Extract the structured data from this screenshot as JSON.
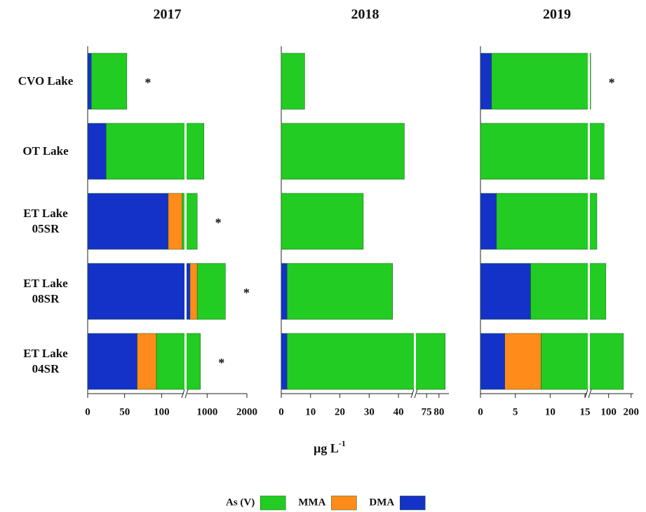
{
  "chart_data": {
    "type": "bar",
    "orientation": "horizontal",
    "stacked": true,
    "categories": [
      "CVO Lake",
      "OT Lake",
      "ET Lake\n05SR",
      "ET Lake\n08SR",
      "ET Lake\n04SR"
    ],
    "series": [
      {
        "name": "DMA",
        "color": "#1432c8"
      },
      {
        "name": "MMA",
        "color": "#ff8c1a"
      },
      {
        "name": "As (V)",
        "color": "#22cc22"
      }
    ],
    "xlabel": "μg L",
    "xlabel_sup": "-1",
    "panels": [
      {
        "title": "2017",
        "xsegments": [
          [
            0,
            130
          ],
          [
            500,
            2000
          ]
        ],
        "xticks": [
          0,
          50,
          100,
          1000,
          2000
        ],
        "series": [
          {
            "values": [
              5,
              25,
              109,
              570,
              67
            ]
          },
          {
            "values": [
              null,
              null,
              19,
              180,
              26
            ]
          },
          {
            "values": [
              48,
              895,
              622,
              710,
              737
            ]
          }
        ],
        "annotations": [
          {
            "category": 0,
            "text": "*"
          },
          {
            "category": 2,
            "text": "*"
          },
          {
            "category": 3,
            "text": "*"
          },
          {
            "category": 4,
            "text": "*"
          }
        ]
      },
      {
        "title": "2018",
        "xsegments": [
          [
            0,
            45
          ],
          [
            71,
            84
          ]
        ],
        "xticks": [
          0,
          10,
          20,
          30,
          40,
          75,
          80
        ],
        "series": [
          {
            "values": [
              null,
              null,
              null,
              2,
              2
            ]
          },
          {
            "values": [
              null,
              null,
              null,
              null,
              null
            ]
          },
          {
            "values": [
              8,
              42,
              28,
              36,
              80.5
            ]
          }
        ],
        "annotations": []
      },
      {
        "title": "2019",
        "xsegments": [
          [
            0,
            15.3
          ],
          [
            20,
            210
          ]
        ],
        "xticks": [
          0,
          5,
          10,
          15,
          100,
          200
        ],
        "series": [
          {
            "values": [
              1.6,
              null,
              2.3,
              7.2,
              3.5
            ]
          },
          {
            "values": [
              null,
              null,
              null,
              null,
              5.2
            ]
          },
          {
            "values": [
              18.9,
              80,
              45.7,
              80.8,
              157
            ]
          }
        ],
        "annotations": [
          {
            "category": 0,
            "text": "*"
          }
        ]
      }
    ]
  }
}
